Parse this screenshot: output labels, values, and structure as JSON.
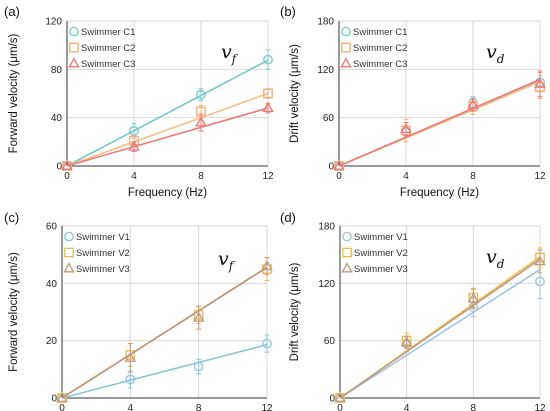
{
  "chart_data": [
    {
      "type": "scatter",
      "panel": "(a)",
      "symbol": "v",
      "symbol_sub": "f",
      "xlabel": "Frequency (Hz)",
      "ylabel": "Forward velocity (μm/s)",
      "xlim": [
        0,
        12
      ],
      "ylim": [
        0,
        120
      ],
      "xticks": [
        0,
        4,
        8,
        12
      ],
      "yticks": [
        0,
        40,
        80,
        120
      ],
      "grid": true,
      "legend": "top-left",
      "series": [
        {
          "name": "Swimmer C1",
          "marker": "circle",
          "color": "#7fcccc",
          "line_color": "#74c7c7",
          "x": [
            0,
            4,
            8,
            12
          ],
          "y": [
            0,
            29,
            59,
            88
          ],
          "err": [
            0,
            6,
            5,
            8
          ],
          "fit_slope": 7.3
        },
        {
          "name": "Swimmer C2",
          "marker": "square",
          "color": "#f4b07a",
          "line_color": "#f5c08a",
          "x": [
            0,
            4,
            8,
            12
          ],
          "y": [
            0,
            21,
            45,
            60
          ],
          "err": [
            0,
            4,
            5,
            4
          ],
          "fit_slope": 5.0
        },
        {
          "name": "Swimmer C3",
          "marker": "triangle",
          "color": "#ec7a78",
          "line_color": "#ec7a78",
          "x": [
            0,
            4,
            8,
            12
          ],
          "y": [
            0,
            16,
            36,
            48
          ],
          "err": [
            0,
            4,
            7,
            4
          ],
          "fit_slope": 4.0
        }
      ]
    },
    {
      "type": "scatter",
      "panel": "(b)",
      "symbol": "v",
      "symbol_sub": "d",
      "xlabel": "Frequency (Hz)",
      "ylabel": "Drift velocity (μm/s)",
      "xlim": [
        0,
        12
      ],
      "ylim": [
        0,
        180
      ],
      "xticks": [
        0,
        4,
        8,
        12
      ],
      "yticks": [
        0,
        60,
        120,
        180
      ],
      "grid": true,
      "legend": "top-left",
      "series": [
        {
          "name": "Swimmer C1",
          "marker": "circle",
          "color": "#7fcccc",
          "line_color": "#74c7c7",
          "x": [
            0,
            4,
            8,
            12
          ],
          "y": [
            0,
            42,
            78,
            104
          ],
          "err": [
            0,
            6,
            8,
            12
          ],
          "fit_slope": 8.9
        },
        {
          "name": "Swimmer C2",
          "marker": "square",
          "color": "#f4b07a",
          "line_color": "#f5c08a",
          "x": [
            0,
            4,
            8,
            12
          ],
          "y": [
            0,
            44,
            74,
            98
          ],
          "err": [
            0,
            14,
            10,
            14
          ],
          "fit_slope": 8.7
        },
        {
          "name": "Swimmer C3",
          "marker": "triangle",
          "color": "#ec7a78",
          "line_color": "#ec7a78",
          "x": [
            0,
            4,
            8,
            12
          ],
          "y": [
            0,
            46,
            76,
            102
          ],
          "err": [
            0,
            8,
            8,
            16
          ],
          "fit_slope": 8.95
        }
      ]
    },
    {
      "type": "scatter",
      "panel": "(c)",
      "symbol": "v",
      "symbol_sub": "f",
      "xlabel": "Frequency (Hz)",
      "ylabel": "Forward velocity (μm/s)",
      "xlim": [
        0,
        12
      ],
      "ylim": [
        0,
        60
      ],
      "xticks": [
        0,
        4,
        8,
        12
      ],
      "yticks": [
        0,
        20,
        40,
        60
      ],
      "grid": true,
      "legend": "top-left",
      "series": [
        {
          "name": "Swimmer V1",
          "marker": "circle",
          "color": "#8fc9dd",
          "line_color": "#88c6d6",
          "x": [
            0,
            4,
            8,
            12
          ],
          "y": [
            0,
            6.5,
            11,
            19
          ],
          "err": [
            0,
            3,
            2.5,
            3
          ],
          "fit_slope": 1.55
        },
        {
          "name": "Swimmer V2",
          "marker": "square",
          "color": "#e3c06a",
          "line_color": "#e8c050",
          "x": [
            0,
            4,
            8,
            12
          ],
          "y": [
            0,
            15,
            29,
            45
          ],
          "err": [
            0,
            4,
            3,
            4
          ],
          "fit_slope": 3.8
        },
        {
          "name": "Swimmer V3",
          "marker": "triangle",
          "color": "#c79a7a",
          "line_color": "#b8947a",
          "x": [
            0,
            4,
            8,
            12
          ],
          "y": [
            0,
            14,
            28,
            46
          ],
          "err": [
            0,
            5,
            4,
            3
          ],
          "fit_slope": 3.8
        }
      ]
    },
    {
      "type": "scatter",
      "panel": "(d)",
      "symbol": "v",
      "symbol_sub": "d",
      "xlabel": "Frequency (Hz)",
      "ylabel": "Drift velocity (μm/s)",
      "xlim": [
        0,
        12
      ],
      "ylim": [
        0,
        180
      ],
      "xticks": [
        0,
        4,
        8,
        12
      ],
      "yticks": [
        0,
        60,
        120,
        180
      ],
      "grid": true,
      "legend": "top-left",
      "series": [
        {
          "name": "Swimmer V1",
          "marker": "circle",
          "color": "#a3c4dc",
          "line_color": "#a3c4dc",
          "x": [
            0,
            4,
            8,
            12
          ],
          "y": [
            0,
            57,
            95,
            122
          ],
          "err": [
            0,
            8,
            10,
            18
          ],
          "fit_slope": 11.2
        },
        {
          "name": "Swimmer V2",
          "marker": "square",
          "color": "#e8c050",
          "line_color": "#e8c050",
          "x": [
            0,
            4,
            8,
            12
          ],
          "y": [
            0,
            60,
            105,
            147
          ],
          "err": [
            0,
            8,
            10,
            10
          ],
          "fit_slope": 12.3
        },
        {
          "name": "Swimmer V3",
          "marker": "triangle",
          "color": "#c19a82",
          "line_color": "#c19a82",
          "x": [
            0,
            4,
            8,
            12
          ],
          "y": [
            0,
            58,
            104,
            143
          ],
          "err": [
            0,
            6,
            10,
            12
          ],
          "fit_slope": 12.1
        }
      ]
    }
  ]
}
